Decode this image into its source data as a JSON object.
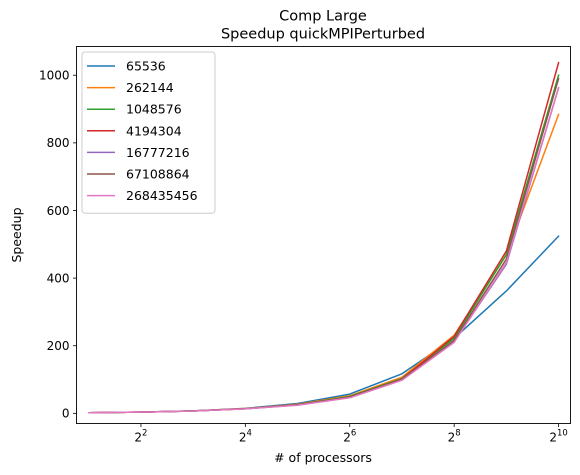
{
  "chart_data": {
    "type": "line",
    "title": "Comp Large",
    "subtitle": "Speedup quickMPIPerturbed",
    "xlabel": "# of processors",
    "ylabel": "Speedup",
    "x_scale": "log2",
    "x": [
      2,
      4,
      8,
      16,
      32,
      64,
      128,
      256,
      512,
      1024
    ],
    "xlim": [
      1.7,
      1200
    ],
    "xticks": [
      4,
      16,
      64,
      256,
      1024
    ],
    "xtick_labels": [
      {
        "base": "2",
        "exp": "2"
      },
      {
        "base": "2",
        "exp": "4"
      },
      {
        "base": "2",
        "exp": "6"
      },
      {
        "base": "2",
        "exp": "8"
      },
      {
        "base": "2",
        "exp": "10"
      }
    ],
    "ylim": [
      -30,
      1085
    ],
    "yticks": [
      0,
      200,
      400,
      600,
      800,
      1000
    ],
    "grid": false,
    "legend_position": "upper-left",
    "series": [
      {
        "name": "65536",
        "color": "#1f77b4",
        "values": [
          1.9,
          3.8,
          7.5,
          14.8,
          29,
          57,
          117,
          222,
          362,
          524
        ]
      },
      {
        "name": "262144",
        "color": "#ff7f0e",
        "values": [
          1.9,
          3.7,
          7.3,
          14.2,
          27,
          52,
          107,
          231,
          468,
          884
        ]
      },
      {
        "name": "1048576",
        "color": "#2ca02c",
        "values": [
          1.9,
          3.7,
          7.2,
          13.8,
          26,
          50,
          103,
          222,
          470,
          1000
        ]
      },
      {
        "name": "4194304",
        "color": "#d62728",
        "values": [
          1.9,
          3.6,
          7.1,
          13.6,
          25,
          48,
          101,
          228,
          480,
          1037
        ]
      },
      {
        "name": "16777216",
        "color": "#9467bd",
        "values": [
          1.9,
          3.6,
          7.0,
          13.5,
          25,
          47,
          99,
          212,
          441,
          963
        ]
      },
      {
        "name": "67108864",
        "color": "#8c564b",
        "values": [
          1.9,
          3.6,
          7.0,
          13.5,
          25,
          48,
          100,
          216,
          456,
          990
        ]
      },
      {
        "name": "268435456",
        "color": "#e377c2",
        "values": [
          1.9,
          3.6,
          7.0,
          13.4,
          24,
          46,
          98,
          210,
          446,
          963
        ]
      }
    ]
  }
}
